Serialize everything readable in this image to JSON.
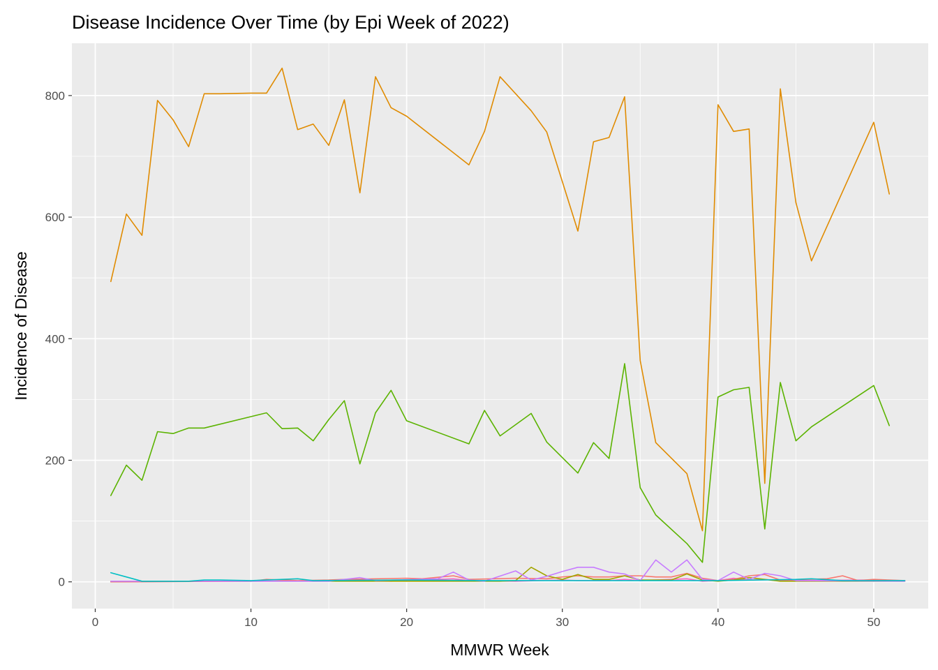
{
  "chart_data": {
    "type": "line",
    "title": "Disease Incidence Over Time (by Epi Week of 2022)",
    "xlabel": "MMWR Week",
    "ylabel": "Incidence of Disease",
    "xlim": [
      -1.5,
      53.5
    ],
    "ylim": [
      -44,
      886
    ],
    "x_ticks": [
      0,
      10,
      20,
      30,
      40,
      50
    ],
    "y_ticks": [
      0,
      200,
      400,
      600,
      800
    ],
    "grid": true,
    "legend": "none",
    "colors": {
      "panel_background": "#EBEBEB",
      "grid_major": "#FFFFFF",
      "tick_label": "#4D4D4D"
    },
    "series": [
      {
        "color": "#E08B00",
        "points": [
          [
            1,
            494
          ],
          [
            2,
            605
          ],
          [
            3,
            570
          ],
          [
            4,
            792
          ],
          [
            5,
            760
          ],
          [
            6,
            716
          ],
          [
            7,
            803
          ],
          [
            8,
            803
          ],
          [
            10,
            804
          ],
          [
            11,
            804
          ],
          [
            12,
            845
          ],
          [
            13,
            744
          ],
          [
            14,
            753
          ],
          [
            15,
            718
          ],
          [
            16,
            793
          ],
          [
            17,
            640
          ],
          [
            18,
            831
          ],
          [
            19,
            780
          ],
          [
            20,
            766
          ],
          [
            24,
            686
          ],
          [
            25,
            741
          ],
          [
            26,
            831
          ],
          [
            28,
            775
          ],
          [
            29,
            740
          ],
          [
            31,
            577
          ],
          [
            32,
            724
          ],
          [
            33,
            731
          ],
          [
            34,
            798
          ],
          [
            35,
            364
          ],
          [
            36,
            229
          ],
          [
            38,
            178
          ],
          [
            39,
            84
          ],
          [
            40,
            785
          ],
          [
            41,
            741
          ],
          [
            42,
            745
          ],
          [
            43,
            162
          ],
          [
            44,
            811
          ],
          [
            45,
            624
          ],
          [
            46,
            528
          ],
          [
            50,
            756
          ],
          [
            51,
            638
          ]
        ]
      },
      {
        "color": "#5BB300",
        "points": [
          [
            1,
            142
          ],
          [
            2,
            192
          ],
          [
            3,
            167
          ],
          [
            4,
            247
          ],
          [
            5,
            244
          ],
          [
            6,
            253
          ],
          [
            7,
            253
          ],
          [
            11,
            278
          ],
          [
            12,
            252
          ],
          [
            13,
            253
          ],
          [
            14,
            232
          ],
          [
            15,
            267
          ],
          [
            16,
            298
          ],
          [
            17,
            194
          ],
          [
            18,
            278
          ],
          [
            19,
            315
          ],
          [
            20,
            265
          ],
          [
            24,
            227
          ],
          [
            25,
            282
          ],
          [
            26,
            240
          ],
          [
            28,
            277
          ],
          [
            29,
            230
          ],
          [
            31,
            179
          ],
          [
            32,
            229
          ],
          [
            33,
            203
          ],
          [
            34,
            359
          ],
          [
            35,
            155
          ],
          [
            36,
            110
          ],
          [
            38,
            63
          ],
          [
            39,
            32
          ],
          [
            40,
            304
          ],
          [
            41,
            316
          ],
          [
            42,
            320
          ],
          [
            43,
            87
          ],
          [
            44,
            328
          ],
          [
            45,
            232
          ],
          [
            46,
            255
          ],
          [
            50,
            323
          ],
          [
            51,
            257
          ]
        ]
      },
      {
        "color": "#00BFC4",
        "points": [
          [
            1,
            15
          ],
          [
            2,
            8
          ],
          [
            3,
            1
          ],
          [
            6,
            1
          ],
          [
            7,
            3
          ],
          [
            8,
            3
          ],
          [
            10,
            2
          ],
          [
            11,
            3
          ],
          [
            12,
            4
          ],
          [
            13,
            5
          ],
          [
            14,
            2
          ],
          [
            20,
            3
          ],
          [
            25,
            2
          ],
          [
            30,
            2
          ],
          [
            40,
            2
          ],
          [
            45,
            4
          ],
          [
            46,
            5
          ],
          [
            48,
            2
          ],
          [
            52,
            2
          ]
        ]
      },
      {
        "color": "#C77CFF",
        "points": [
          [
            1,
            1
          ],
          [
            15,
            1
          ],
          [
            17,
            7
          ],
          [
            18,
            2
          ],
          [
            22,
            5
          ],
          [
            23,
            16
          ],
          [
            24,
            3
          ],
          [
            25,
            1
          ],
          [
            27,
            18
          ],
          [
            28,
            3
          ],
          [
            29,
            9
          ],
          [
            30,
            17
          ],
          [
            31,
            24
          ],
          [
            32,
            24
          ],
          [
            33,
            16
          ],
          [
            34,
            13
          ],
          [
            35,
            2
          ],
          [
            36,
            36
          ],
          [
            37,
            16
          ],
          [
            38,
            36
          ],
          [
            39,
            4
          ],
          [
            40,
            2
          ],
          [
            41,
            16
          ],
          [
            42,
            4
          ],
          [
            43,
            14
          ],
          [
            44,
            10
          ],
          [
            45,
            2
          ],
          [
            52,
            1
          ]
        ]
      },
      {
        "color": "#A3A500",
        "points": [
          [
            1,
            1
          ],
          [
            26,
            1
          ],
          [
            27,
            2
          ],
          [
            28,
            24
          ],
          [
            29,
            10
          ],
          [
            30,
            4
          ],
          [
            31,
            12
          ],
          [
            32,
            4
          ],
          [
            33,
            4
          ],
          [
            34,
            10
          ],
          [
            35,
            3
          ],
          [
            37,
            3
          ],
          [
            38,
            13
          ],
          [
            39,
            3
          ],
          [
            40,
            1
          ],
          [
            41,
            3
          ],
          [
            42,
            7
          ],
          [
            44,
            1
          ],
          [
            52,
            1
          ]
        ]
      },
      {
        "color": "#F8766D",
        "points": [
          [
            1,
            0
          ],
          [
            10,
            1
          ],
          [
            11,
            4
          ],
          [
            13,
            2
          ],
          [
            15,
            3
          ],
          [
            16,
            4
          ],
          [
            20,
            6
          ],
          [
            21,
            5
          ],
          [
            23,
            10
          ],
          [
            24,
            4
          ],
          [
            27,
            6
          ],
          [
            29,
            5
          ],
          [
            30,
            8
          ],
          [
            31,
            10
          ],
          [
            32,
            8
          ],
          [
            33,
            8
          ],
          [
            34,
            10
          ],
          [
            35,
            10
          ],
          [
            36,
            8
          ],
          [
            37,
            8
          ],
          [
            38,
            14
          ],
          [
            39,
            6
          ],
          [
            40,
            2
          ],
          [
            41,
            4
          ],
          [
            42,
            10
          ],
          [
            43,
            12
          ],
          [
            44,
            3
          ],
          [
            47,
            5
          ],
          [
            48,
            10
          ],
          [
            49,
            2
          ],
          [
            50,
            4
          ],
          [
            51,
            3
          ],
          [
            52,
            2
          ]
        ]
      },
      {
        "color": "#FF61C3",
        "points": [
          [
            1,
            0
          ],
          [
            16,
            2
          ],
          [
            17,
            3
          ],
          [
            19,
            1
          ],
          [
            23,
            5
          ],
          [
            24,
            2
          ],
          [
            27,
            1
          ],
          [
            30,
            3
          ],
          [
            31,
            2
          ],
          [
            33,
            2
          ],
          [
            34,
            4
          ],
          [
            35,
            2
          ],
          [
            38,
            5
          ],
          [
            39,
            1
          ],
          [
            40,
            2
          ],
          [
            41,
            6
          ],
          [
            42,
            3
          ],
          [
            43,
            4
          ],
          [
            44,
            2
          ],
          [
            50,
            3
          ],
          [
            52,
            2
          ]
        ]
      }
    ]
  }
}
